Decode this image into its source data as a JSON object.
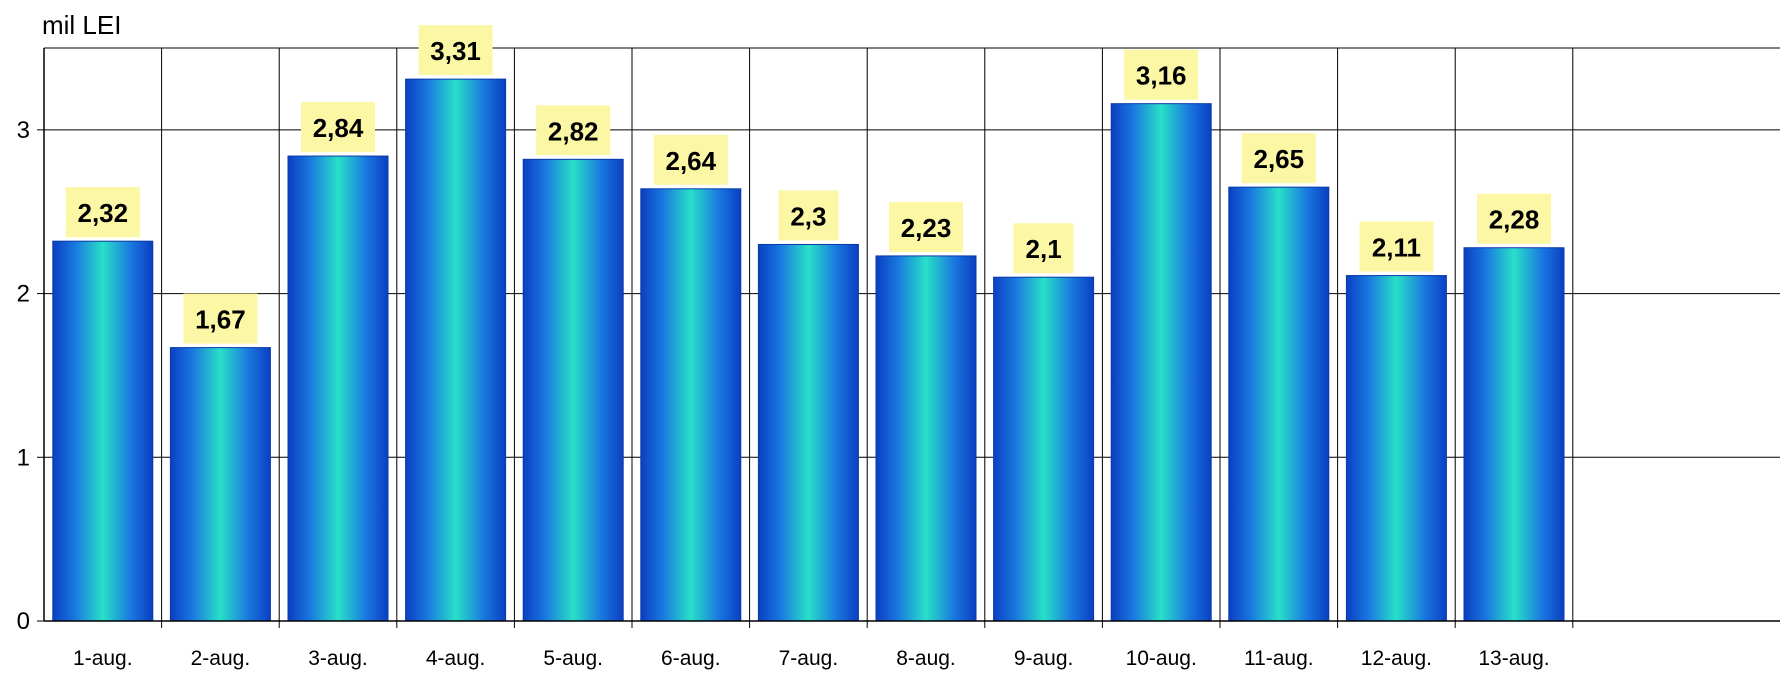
{
  "chart_data": {
    "type": "bar",
    "ylabel": "mil LEI",
    "categories": [
      "1-aug.",
      "2-aug.",
      "3-aug.",
      "4-aug.",
      "5-aug.",
      "6-aug.",
      "7-aug.",
      "8-aug.",
      "9-aug.",
      "10-aug.",
      "11-aug.",
      "12-aug.",
      "13-aug."
    ],
    "values": [
      2.32,
      1.67,
      2.84,
      3.31,
      2.82,
      2.64,
      2.3,
      2.23,
      2.1,
      3.16,
      2.65,
      2.11,
      2.28
    ],
    "data_labels": [
      "2,32",
      "1,67",
      "2,84",
      "3,31",
      "2,82",
      "2,64",
      "2,3",
      "2,23",
      "2,1",
      "3,16",
      "2,65",
      "2,11",
      "2,28"
    ],
    "y_ticks": [
      "0",
      "1",
      "2",
      "3"
    ],
    "ylim": [
      0,
      3.5
    ],
    "grid": true,
    "colors": {
      "bar_edge": "#0044cc",
      "bar_mid": "#22d4c8",
      "label_bg": "#fbf7a4",
      "grid": "#000000"
    }
  }
}
